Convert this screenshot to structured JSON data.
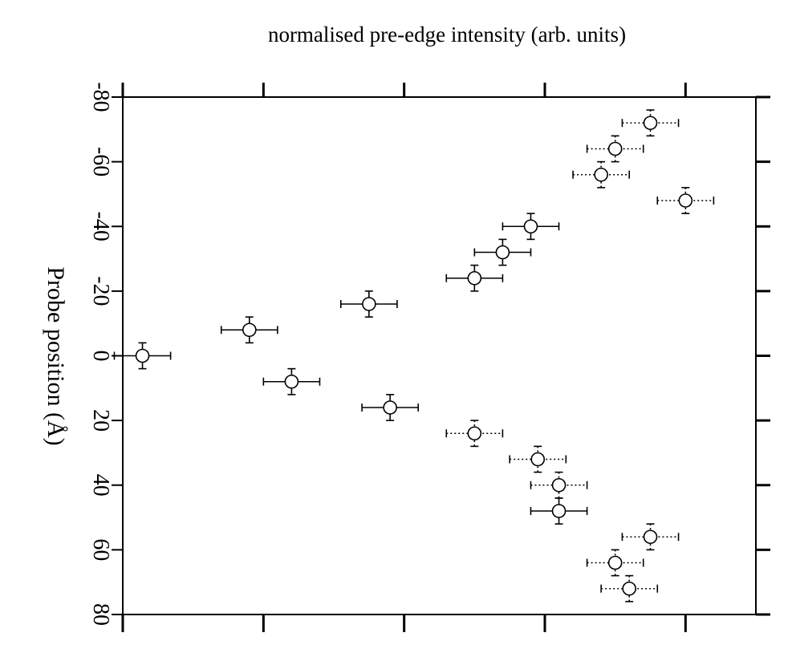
{
  "chart_data": {
    "type": "scatter",
    "title": "normalised pre-edge intensity (arb. units)",
    "xlabel": "",
    "ylabel": "Probe position (Å)",
    "xlim": [
      0,
      4.5
    ],
    "ylim": [
      -80,
      80
    ],
    "y_inverted": true,
    "y_ticks": [
      -80,
      -60,
      -40,
      -20,
      0,
      20,
      40,
      60,
      80
    ],
    "x_ticks": [
      0,
      1,
      2,
      3,
      4
    ],
    "x_tick_labels_shown": false,
    "marker": "open-circle",
    "series": [
      {
        "points": [
          {
            "x": 0.14,
            "y": 0,
            "xerr": 0.2,
            "yerr": 4,
            "style": "solid"
          },
          {
            "x": 0.9,
            "y": -8,
            "xerr": 0.2,
            "yerr": 4,
            "style": "solid"
          },
          {
            "x": 1.2,
            "y": 8,
            "xerr": 0.2,
            "yerr": 4,
            "style": "solid"
          },
          {
            "x": 1.75,
            "y": -16,
            "xerr": 0.2,
            "yerr": 4,
            "style": "solid"
          },
          {
            "x": 1.9,
            "y": 16,
            "xerr": 0.2,
            "yerr": 4,
            "style": "solid"
          },
          {
            "x": 2.5,
            "y": 24,
            "xerr": 0.2,
            "yerr": 4,
            "style": "dotted"
          },
          {
            "x": 2.5,
            "y": -24,
            "xerr": 0.2,
            "yerr": 4,
            "style": "solid"
          },
          {
            "x": 2.7,
            "y": -32,
            "xerr": 0.2,
            "yerr": 4,
            "style": "solid"
          },
          {
            "x": 2.9,
            "y": -40,
            "xerr": 0.2,
            "yerr": 4,
            "style": "solid"
          },
          {
            "x": 2.95,
            "y": 32,
            "xerr": 0.2,
            "yerr": 4,
            "style": "dotted"
          },
          {
            "x": 3.1,
            "y": 40,
            "xerr": 0.2,
            "yerr": 4,
            "style": "dotted"
          },
          {
            "x": 3.1,
            "y": 48,
            "xerr": 0.2,
            "yerr": 4,
            "style": "solid"
          },
          {
            "x": 3.4,
            "y": -56,
            "xerr": 0.2,
            "yerr": 4,
            "style": "dotted"
          },
          {
            "x": 3.5,
            "y": -64,
            "xerr": 0.2,
            "yerr": 4,
            "style": "dotted"
          },
          {
            "x": 3.5,
            "y": 64,
            "xerr": 0.2,
            "yerr": 4,
            "style": "dotted"
          },
          {
            "x": 3.6,
            "y": 72,
            "xerr": 0.2,
            "yerr": 4,
            "style": "dotted"
          },
          {
            "x": 3.75,
            "y": -72,
            "xerr": 0.2,
            "yerr": 4,
            "style": "dotted"
          },
          {
            "x": 3.75,
            "y": 56,
            "xerr": 0.2,
            "yerr": 4,
            "style": "dotted"
          },
          {
            "x": 4.0,
            "y": -48,
            "xerr": 0.2,
            "yerr": 4,
            "style": "dotted"
          }
        ]
      }
    ],
    "grid": false,
    "colors": {
      "ink": "#000000",
      "background": "#ffffff"
    }
  }
}
